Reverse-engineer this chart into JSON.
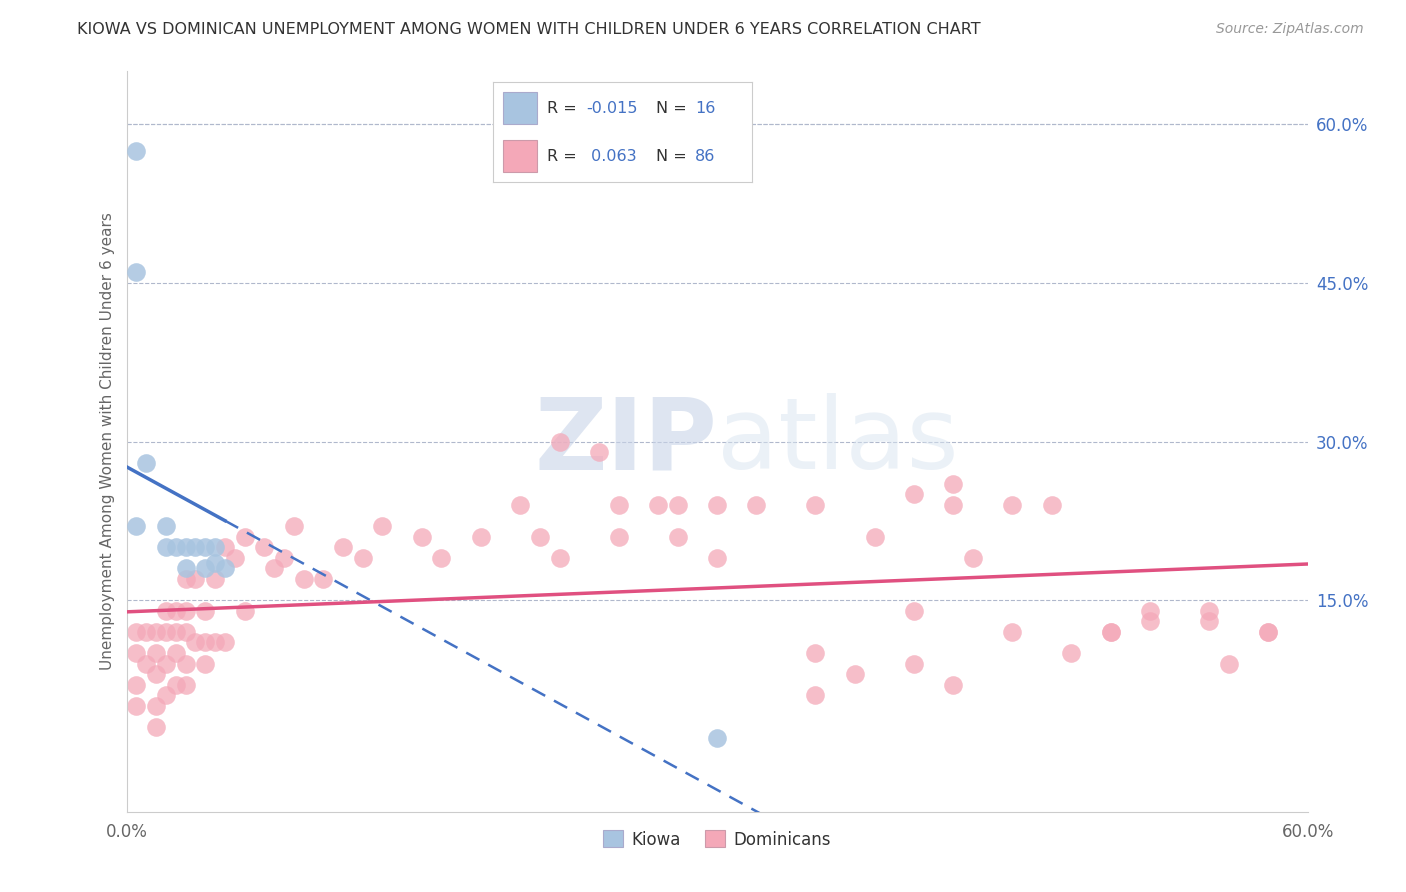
{
  "title": "KIOWA VS DOMINICAN UNEMPLOYMENT AMONG WOMEN WITH CHILDREN UNDER 6 YEARS CORRELATION CHART",
  "source": "Source: ZipAtlas.com",
  "ylabel": "Unemployment Among Women with Children Under 6 years",
  "xlim": [
    0.0,
    0.6
  ],
  "ylim": [
    -0.05,
    0.65
  ],
  "right_yticks": [
    0.0,
    0.15,
    0.3,
    0.45,
    0.6
  ],
  "right_yticklabels": [
    "",
    "15.0%",
    "30.0%",
    "45.0%",
    "60.0%"
  ],
  "kiowa_R": -0.015,
  "kiowa_N": 16,
  "dominican_R": 0.063,
  "dominican_N": 86,
  "kiowa_color": "#a8c4e0",
  "dominican_color": "#f4a8b8",
  "kiowa_line_color": "#4472c4",
  "dominican_line_color": "#e05080",
  "kiowa_x": [
    0.005,
    0.005,
    0.005,
    0.01,
    0.02,
    0.02,
    0.025,
    0.03,
    0.03,
    0.035,
    0.04,
    0.04,
    0.045,
    0.045,
    0.05,
    0.3
  ],
  "kiowa_y": [
    0.575,
    0.46,
    0.22,
    0.28,
    0.22,
    0.2,
    0.2,
    0.2,
    0.18,
    0.2,
    0.2,
    0.18,
    0.2,
    0.185,
    0.18,
    0.02
  ],
  "dominican_x": [
    0.005,
    0.005,
    0.005,
    0.005,
    0.01,
    0.01,
    0.015,
    0.015,
    0.015,
    0.015,
    0.015,
    0.02,
    0.02,
    0.02,
    0.02,
    0.025,
    0.025,
    0.025,
    0.025,
    0.03,
    0.03,
    0.03,
    0.03,
    0.03,
    0.035,
    0.035,
    0.04,
    0.04,
    0.04,
    0.045,
    0.045,
    0.05,
    0.05,
    0.055,
    0.06,
    0.06,
    0.07,
    0.075,
    0.08,
    0.085,
    0.09,
    0.1,
    0.11,
    0.12,
    0.13,
    0.15,
    0.16,
    0.18,
    0.2,
    0.21,
    0.22,
    0.22,
    0.24,
    0.25,
    0.25,
    0.27,
    0.28,
    0.28,
    0.3,
    0.3,
    0.32,
    0.35,
    0.35,
    0.38,
    0.4,
    0.4,
    0.42,
    0.43,
    0.45,
    0.47,
    0.48,
    0.5,
    0.52,
    0.55,
    0.56,
    0.58,
    0.35,
    0.37,
    0.4,
    0.42,
    0.45,
    0.5,
    0.52,
    0.55,
    0.58,
    0.42
  ],
  "dominican_y": [
    0.12,
    0.1,
    0.07,
    0.05,
    0.12,
    0.09,
    0.12,
    0.1,
    0.08,
    0.05,
    0.03,
    0.14,
    0.12,
    0.09,
    0.06,
    0.14,
    0.12,
    0.1,
    0.07,
    0.17,
    0.14,
    0.12,
    0.09,
    0.07,
    0.17,
    0.11,
    0.14,
    0.11,
    0.09,
    0.17,
    0.11,
    0.2,
    0.11,
    0.19,
    0.21,
    0.14,
    0.2,
    0.18,
    0.19,
    0.22,
    0.17,
    0.17,
    0.2,
    0.19,
    0.22,
    0.21,
    0.19,
    0.21,
    0.24,
    0.21,
    0.19,
    0.3,
    0.29,
    0.24,
    0.21,
    0.24,
    0.24,
    0.21,
    0.24,
    0.19,
    0.24,
    0.24,
    0.1,
    0.21,
    0.25,
    0.14,
    0.24,
    0.19,
    0.24,
    0.24,
    0.1,
    0.12,
    0.13,
    0.14,
    0.09,
    0.12,
    0.06,
    0.08,
    0.09,
    0.07,
    0.12,
    0.12,
    0.14,
    0.13,
    0.12,
    0.26
  ]
}
